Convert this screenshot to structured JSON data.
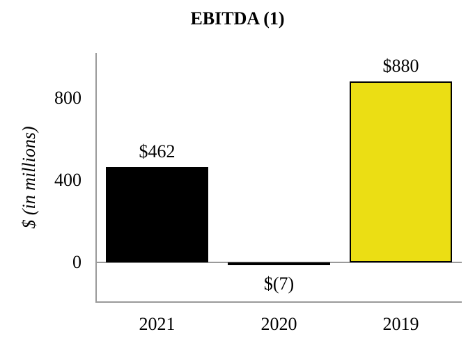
{
  "chart_data": {
    "type": "bar",
    "title": "EBITDA (1)",
    "ylabel": "$ (in millions)",
    "xlabel": "",
    "categories": [
      "2021",
      "2020",
      "2019"
    ],
    "values": [
      462,
      -7,
      880
    ],
    "value_labels": [
      "$462",
      "$(7)",
      "$880"
    ],
    "bar_colors": [
      "#000000",
      "#000000",
      "#ebde14"
    ],
    "bar_border_color": "#000000",
    "yticks": [
      0,
      400,
      800
    ],
    "ytick_labels": [
      "0",
      "400",
      "800"
    ],
    "ylim": [
      -200,
      1030
    ],
    "grid": false,
    "legend": false,
    "axis_line_color": "#9a9a9a",
    "text_color": "#000000"
  }
}
